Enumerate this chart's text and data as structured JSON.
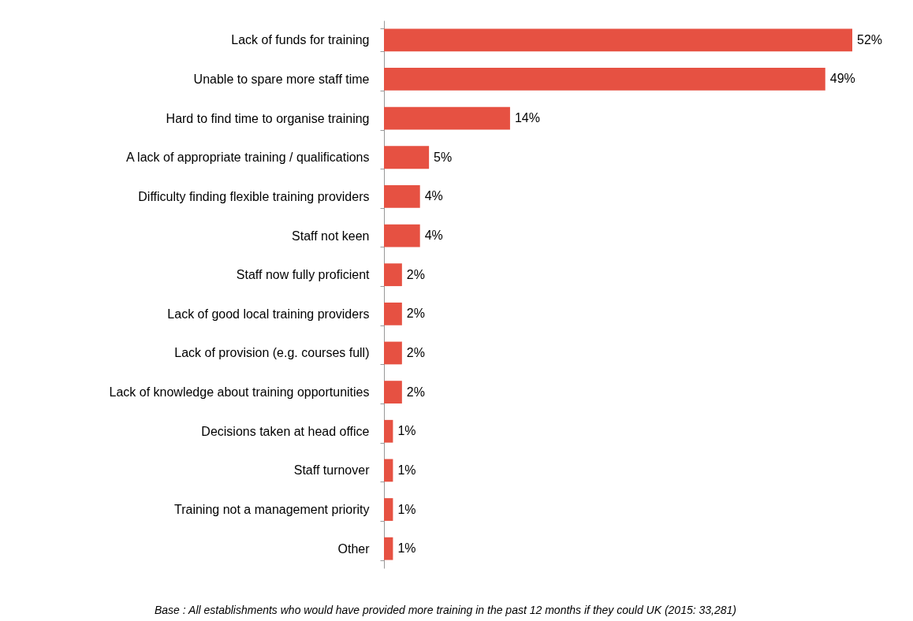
{
  "chart_data": {
    "type": "bar",
    "orientation": "horizontal",
    "categories": [
      "Lack of funds for training",
      "Unable to spare more staff time",
      "Hard to find time to organise training",
      "A lack of appropriate training / qualifications",
      "Difficulty finding flexible training providers",
      "Staff not keen",
      "Staff now fully proficient",
      "Lack of good local training providers",
      "Lack of provision (e.g. courses full)",
      "Lack of knowledge about training opportunities",
      "Decisions taken at head office",
      "Staff turnover",
      "Training not a management priority",
      "Other"
    ],
    "values": [
      52,
      49,
      14,
      5,
      4,
      4,
      2,
      2,
      2,
      2,
      1,
      1,
      1,
      1
    ],
    "value_labels": [
      "52%",
      "49%",
      "14%",
      "5%",
      "4%",
      "4%",
      "2%",
      "2%",
      "2%",
      "2%",
      "1%",
      "1%",
      "1%",
      "1%"
    ],
    "color": "#e65142",
    "annotations": [
      "Base : All establishments who would have provided more training in the past 12 months if they could UK (2015: 33,281)"
    ]
  }
}
